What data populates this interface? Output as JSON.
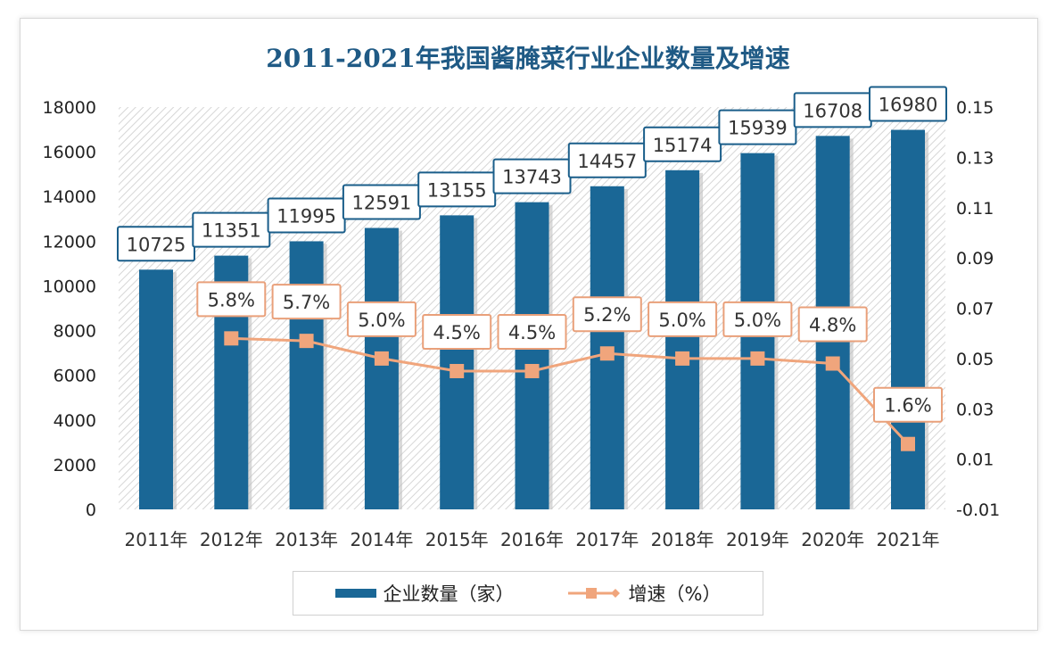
{
  "chart_data": {
    "type": "bar+line",
    "title": "2011-2021年我国酱腌菜行业企业数量及增速",
    "categories": [
      "2011年",
      "2012年",
      "2013年",
      "2014年",
      "2015年",
      "2016年",
      "2017年",
      "2018年",
      "2019年",
      "2020年",
      "2021年"
    ],
    "series": [
      {
        "name": "企业数量（家）",
        "type": "bar",
        "axis": "left",
        "color": "#1a6796",
        "values": [
          10725,
          11351,
          11995,
          12591,
          13155,
          13743,
          14457,
          15174,
          15939,
          16708,
          16980
        ],
        "labels": [
          "10725",
          "11351",
          "11995",
          "12591",
          "13155",
          "13743",
          "14457",
          "15174",
          "15939",
          "16708",
          "16980"
        ]
      },
      {
        "name": "增速（%）",
        "type": "line",
        "axis": "right",
        "color": "#f0a57c",
        "values": [
          null,
          0.058,
          0.057,
          0.05,
          0.045,
          0.045,
          0.052,
          0.05,
          0.05,
          0.048,
          0.016
        ],
        "labels": [
          "",
          "5.8%",
          "5.7%",
          "5.0%",
          "4.5%",
          "4.5%",
          "5.2%",
          "5.0%",
          "5.0%",
          "4.8%",
          "1.6%"
        ]
      }
    ],
    "y_left": {
      "range": [
        0,
        18000
      ],
      "ticks": [
        "0",
        "2000",
        "4000",
        "6000",
        "8000",
        "10000",
        "12000",
        "14000",
        "16000",
        "18000"
      ]
    },
    "y_right": {
      "range": [
        -0.01,
        0.15
      ],
      "ticks": [
        "-0.01",
        "0.01",
        "0.03",
        "0.05",
        "0.07",
        "0.09",
        "0.11",
        "0.13",
        "0.15"
      ]
    },
    "grid": false,
    "legend": "bottom"
  }
}
